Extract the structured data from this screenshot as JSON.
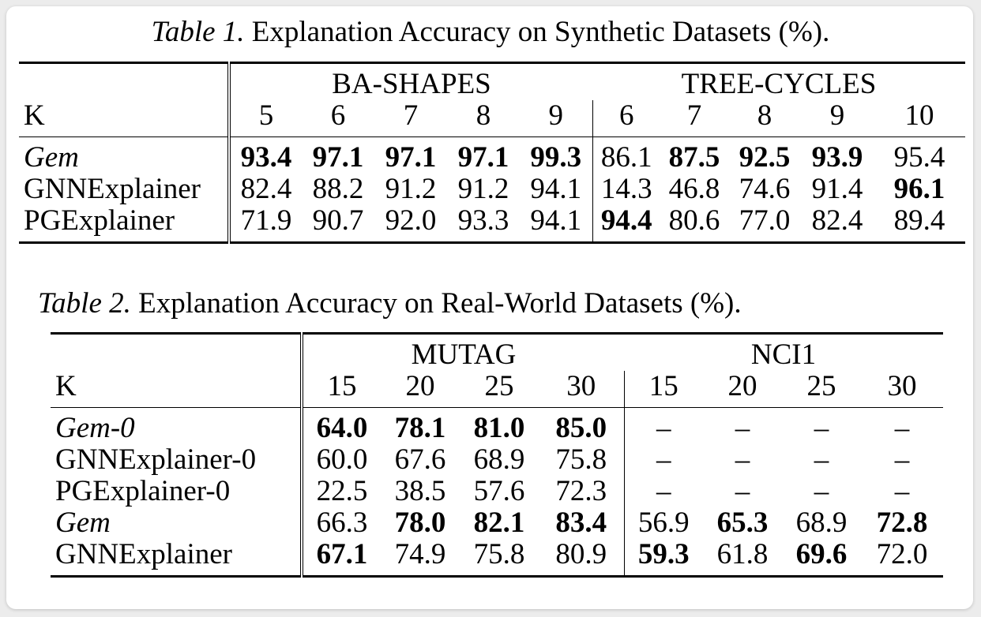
{
  "table1": {
    "caption_label": "Table 1.",
    "caption_text": " Explanation Accuracy on Synthetic Datasets (%).",
    "k_label": "K",
    "groups": [
      "BA-SHAPES",
      "TREE-CYCLES"
    ],
    "k_values": [
      "5",
      "6",
      "7",
      "8",
      "9",
      "6",
      "7",
      "8",
      "9",
      "10"
    ],
    "rows": [
      {
        "name": "Gem",
        "italic": true,
        "values": [
          "93.4",
          "97.1",
          "97.1",
          "97.1",
          "99.3",
          "86.1",
          "87.5",
          "92.5",
          "93.9",
          "95.4"
        ],
        "bold": [
          0,
          1,
          2,
          3,
          4,
          6,
          7,
          8
        ]
      },
      {
        "name": "GNNExplainer",
        "italic": false,
        "values": [
          "82.4",
          "88.2",
          "91.2",
          "91.2",
          "94.1",
          "14.3",
          "46.8",
          "74.6",
          "91.4",
          "96.1"
        ],
        "bold": [
          9
        ]
      },
      {
        "name": "PGExplainer",
        "italic": false,
        "values": [
          "71.9",
          "90.7",
          "92.0",
          "93.3",
          "94.1",
          "94.4",
          "80.6",
          "77.0",
          "82.4",
          "89.4"
        ],
        "bold": [
          5
        ]
      }
    ]
  },
  "table2": {
    "caption_label": "Table 2.",
    "caption_text": " Explanation Accuracy on Real-World Datasets (%).",
    "k_label": "K",
    "groups": [
      "MUTAG",
      "NCI1"
    ],
    "k_values": [
      "15",
      "20",
      "25",
      "30",
      "15",
      "20",
      "25",
      "30"
    ],
    "rows": [
      {
        "name": "Gem-0",
        "italic": true,
        "values": [
          "64.0",
          "78.1",
          "81.0",
          "85.0",
          "–",
          "–",
          "–",
          "–"
        ],
        "bold": [
          0,
          1,
          2,
          3
        ]
      },
      {
        "name": "GNNExplainer-0",
        "italic": false,
        "values": [
          "60.0",
          "67.6",
          "68.9",
          "75.8",
          "–",
          "–",
          "–",
          "–"
        ],
        "bold": []
      },
      {
        "name": "PGExplainer-0",
        "italic": false,
        "values": [
          "22.5",
          "38.5",
          "57.6",
          "72.3",
          "–",
          "–",
          "–",
          "–"
        ],
        "bold": []
      },
      {
        "name": "Gem",
        "italic": true,
        "values": [
          "66.3",
          "78.0",
          "82.1",
          "83.4",
          "56.9",
          "65.3",
          "68.9",
          "72.8"
        ],
        "bold": [
          1,
          2,
          3,
          5,
          7
        ]
      },
      {
        "name": "GNNExplainer",
        "italic": false,
        "values": [
          "67.1",
          "74.9",
          "75.8",
          "80.9",
          "59.3",
          "61.8",
          "69.6",
          "72.0"
        ],
        "bold": [
          0,
          4,
          6
        ]
      }
    ]
  }
}
